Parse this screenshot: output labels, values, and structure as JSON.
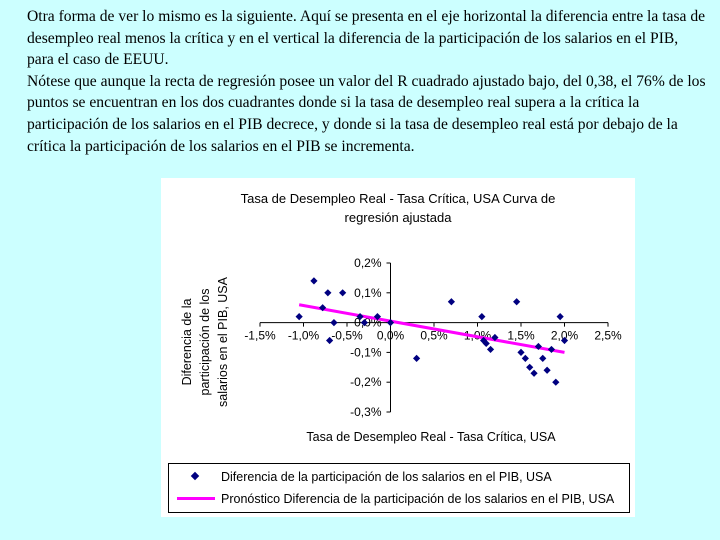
{
  "slide": {
    "paragraph1": "Otra forma de ver lo mismo es la siguiente. Aquí se presenta en el eje horizontal la diferencia entre la tasa de desempleo real menos la crítica y en el vertical la diferencia de la participación de los salarios en el PIB, para el caso de EEUU.",
    "paragraph2": "Nótese que aunque la recta de regresión posee un valor del R cuadrado ajustado bajo, del 0,38, el  76% de los puntos se encuentran en los dos cuadrantes donde si la tasa de desempleo real supera a la crítica la participación de los salarios en el PIB decrece, y donde si la tasa de desempleo real está por debajo de la crítica la participación de los salarios en el PIB se incrementa."
  },
  "chart_data": {
    "type": "scatter",
    "title_line1": "Tasa de Desempleo Real - Tasa Crítica, USA Curva de",
    "title_line2": "regresión ajustada",
    "xlabel": "Tasa de Desempleo Real - Tasa Crítica, USA",
    "ylabel_line1": "Diferencia de la",
    "ylabel_line2": "participación de los",
    "ylabel_line3": "salarios en el PIB, USA",
    "xlim": [
      -1.5,
      2.5
    ],
    "ylim": [
      -0.3,
      0.2
    ],
    "x_ticks": [
      -1.5,
      -1.0,
      -0.5,
      0.0,
      0.5,
      1.0,
      1.5,
      2.0,
      2.5
    ],
    "x_tick_labels": [
      "-1,5%",
      "-1,0%",
      "-0,5%",
      "0,0%",
      "0,5%",
      "1,0%",
      "1,5%",
      "2,0%",
      "2,5%"
    ],
    "y_ticks": [
      0.2,
      0.1,
      0.0,
      -0.1,
      -0.2,
      -0.3
    ],
    "y_tick_labels": [
      "0,2%",
      "0,1%",
      "0,0%",
      "-0,1%",
      "-0,2%",
      "-0,3%"
    ],
    "grid": false,
    "legend_position": "bottom",
    "series": [
      {
        "name": "Diferencia de la participación de los salarios en el PIB, USA",
        "kind": "scatter",
        "color": "#000080",
        "x": [
          -1.05,
          -0.88,
          -0.78,
          -0.72,
          -0.7,
          -0.65,
          -0.55,
          -0.35,
          -0.3,
          -0.15,
          0.0,
          0.3,
          0.7,
          1.05,
          1.07,
          1.1,
          1.15,
          1.2,
          1.45,
          1.5,
          1.55,
          1.6,
          1.65,
          1.7,
          1.75,
          1.8,
          1.85,
          1.9,
          1.95,
          2.0
        ],
        "y": [
          0.02,
          0.14,
          0.05,
          0.1,
          -0.06,
          0.0,
          0.1,
          0.02,
          0.0,
          0.02,
          0.0,
          -0.12,
          0.07,
          0.02,
          -0.06,
          -0.07,
          -0.09,
          -0.05,
          0.07,
          -0.1,
          -0.12,
          -0.15,
          -0.17,
          -0.08,
          -0.12,
          -0.16,
          -0.09,
          -0.2,
          0.02,
          -0.06
        ]
      },
      {
        "name": "Pronóstico Diferencia de la participación de los salarios en el PIB, USA",
        "kind": "line",
        "color": "#ff00ff",
        "x": [
          -1.05,
          2.0
        ],
        "y": [
          0.06,
          -0.1
        ]
      }
    ]
  }
}
